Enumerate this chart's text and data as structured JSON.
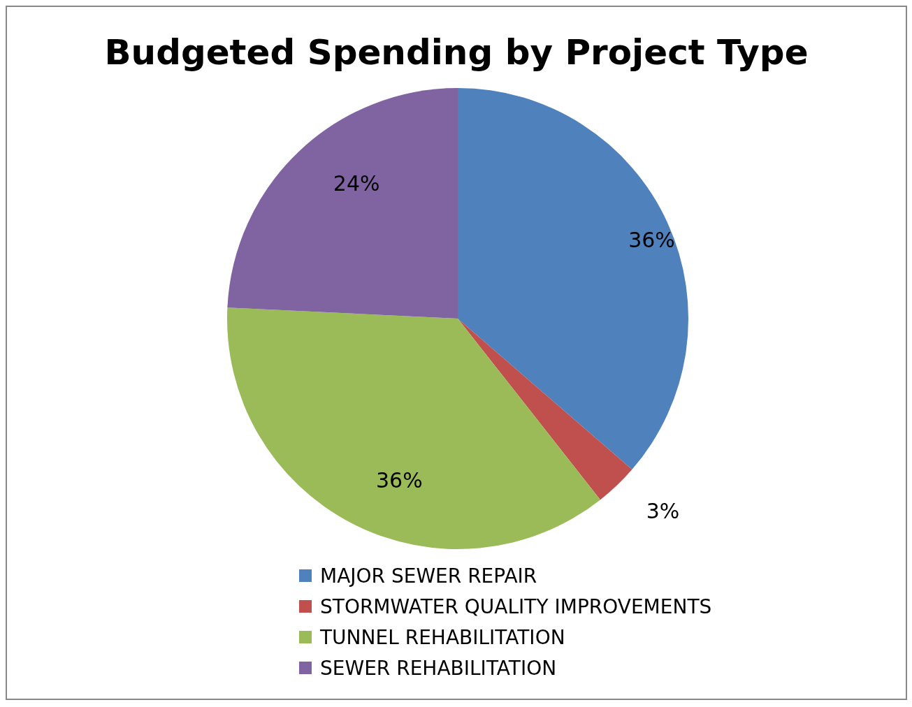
{
  "chart_data": {
    "type": "pie",
    "title": "Budgeted Spending by Project Type",
    "categories": [
      "MAJOR SEWER REPAIR",
      "STORMWATER QUALITY IMPROVEMENTS",
      "TUNNEL REHABILITATION",
      "SEWER REHABILITATION"
    ],
    "values": [
      36,
      3,
      36,
      24
    ],
    "value_labels": [
      "36%",
      "3%",
      "36%",
      "24%"
    ],
    "colors": [
      "#4f81bd",
      "#c0504d",
      "#9bbb59",
      "#8064a2"
    ],
    "legend": "bottom"
  }
}
